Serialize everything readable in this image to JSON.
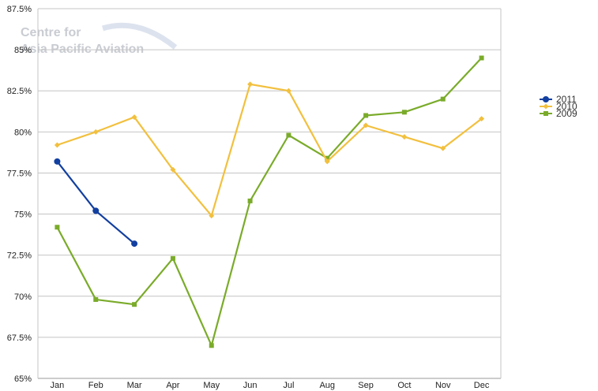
{
  "watermark": {
    "line1": "Centre for",
    "line2": "Asia Pacific Aviation"
  },
  "chart_data": {
    "type": "line",
    "title": "",
    "xlabel": "",
    "ylabel": "",
    "categories": [
      "Jan",
      "Feb",
      "Mar",
      "Apr",
      "May",
      "Jun",
      "Jul",
      "Aug",
      "Sep",
      "Oct",
      "Nov",
      "Dec"
    ],
    "ylim": [
      65,
      87.5
    ],
    "yticks": [
      "87.5%",
      "85%",
      "82.5%",
      "80%",
      "77.5%",
      "75%",
      "72.5%",
      "70%",
      "67.5%",
      "65%"
    ],
    "ytick_values": [
      87.5,
      85,
      82.5,
      80,
      77.5,
      75,
      72.5,
      70,
      67.5,
      65
    ],
    "grid": true,
    "legend_position": "right",
    "series": [
      {
        "name": "2011",
        "color": "#123fa0",
        "marker": "circle",
        "values": [
          78.2,
          75.2,
          73.2,
          null,
          null,
          null,
          null,
          null,
          null,
          null,
          null,
          null
        ]
      },
      {
        "name": "2010",
        "color": "#f2c03e",
        "marker": "diamond",
        "values": [
          79.2,
          80.0,
          80.9,
          77.7,
          74.9,
          82.9,
          82.5,
          78.2,
          80.4,
          79.7,
          79.0,
          80.8
        ]
      },
      {
        "name": "2009",
        "color": "#7aab2a",
        "marker": "square",
        "values": [
          74.2,
          69.8,
          69.5,
          72.3,
          67.0,
          75.8,
          79.8,
          78.4,
          81.0,
          81.2,
          82.0,
          84.5
        ]
      }
    ]
  }
}
